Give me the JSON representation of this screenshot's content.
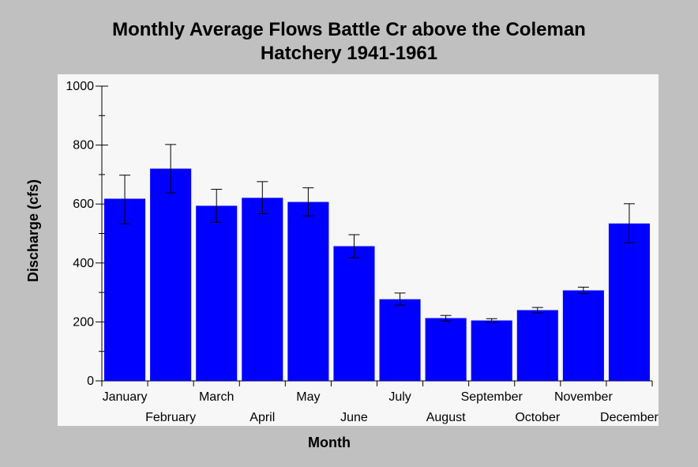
{
  "chart_data": {
    "type": "bar",
    "title_lines": [
      "Monthly Average Flows Battle Cr above the Coleman",
      "Hatchery 1941-1961"
    ],
    "xlabel": "Month",
    "ylabel": "Discharge (cfs)",
    "ylim": [
      0,
      1000
    ],
    "yticks": [
      "0",
      "200",
      "400",
      "600",
      "800",
      "1000"
    ],
    "grid": false,
    "categories": [
      "January",
      "February",
      "March",
      "April",
      "May",
      "June",
      "July",
      "August",
      "September",
      "October",
      "November",
      "December"
    ],
    "values": [
      618,
      720,
      594,
      621,
      607,
      457,
      277,
      213,
      205,
      240,
      307,
      534
    ],
    "error_low": [
      533,
      638,
      538,
      567,
      560,
      418,
      258,
      203,
      199,
      231,
      296,
      469
    ],
    "error_high": [
      698,
      802,
      650,
      676,
      655,
      496,
      298,
      222,
      211,
      249,
      318,
      601
    ],
    "colors": {
      "bar": "#0000ff",
      "plot_background": "#f7f7f7",
      "page_background": "#c0c0c0",
      "error_bar": "#000000"
    }
  }
}
